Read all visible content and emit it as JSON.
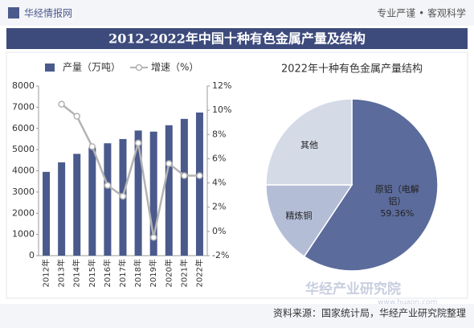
{
  "header": {
    "brand": "华经情报网",
    "slogan": "专业严谨 • 客观科学",
    "title": "2012-2022年中国十种有色金属产量及结构"
  },
  "chart_data": [
    {
      "type": "bar-line",
      "categories": [
        "2012年",
        "2013年",
        "2014年",
        "2015年",
        "2016年",
        "2017年",
        "2018年",
        "2019年",
        "2020年",
        "2021年",
        "2022年"
      ],
      "series": [
        {
          "name": "产量（万吨）",
          "color": "#4b5a8c",
          "values": [
            3950,
            4400,
            4800,
            5100,
            5300,
            5500,
            5900,
            5850,
            6150,
            6450,
            6750
          ]
        },
        {
          "name": "增速（%）",
          "color": "#b3b3b3",
          "axis": "y2",
          "values": [
            null,
            10.5,
            9.5,
            7.0,
            3.8,
            2.9,
            7.3,
            -0.5,
            5.6,
            4.6,
            4.6
          ]
        }
      ],
      "ylim": [
        0,
        8000
      ],
      "yticks": [
        0,
        1000,
        2000,
        3000,
        4000,
        5000,
        6000,
        7000,
        8000
      ],
      "y2lim": [
        -2,
        12
      ],
      "y2ticks": [
        {
          "value": -2,
          "label": "-2%"
        },
        {
          "value": 0,
          "label": "0%"
        },
        {
          "value": 2,
          "label": "2%"
        },
        {
          "value": 4,
          "label": "4%"
        },
        {
          "value": 6,
          "label": "6%"
        },
        {
          "value": 8,
          "label": "8%"
        },
        {
          "value": 10,
          "label": "10%"
        },
        {
          "value": 12,
          "label": "12%"
        }
      ]
    },
    {
      "type": "pie",
      "title": "2022年十种有色金属产量结构",
      "categories": [
        "原铝（电解铝）",
        "精炼铜",
        "其他"
      ],
      "values": [
        59.36,
        15.64,
        25.0
      ],
      "value_labels": [
        "59.36%",
        null,
        null
      ],
      "colors": [
        "#5b6b9b",
        "#b3bdd6",
        "#d5dae7"
      ]
    }
  ],
  "footer": {
    "source": "资料来源：国家统计局，华经产业研究院整理",
    "watermark": "华经产业研究院",
    "watermark_url": "www.huaon.com"
  }
}
